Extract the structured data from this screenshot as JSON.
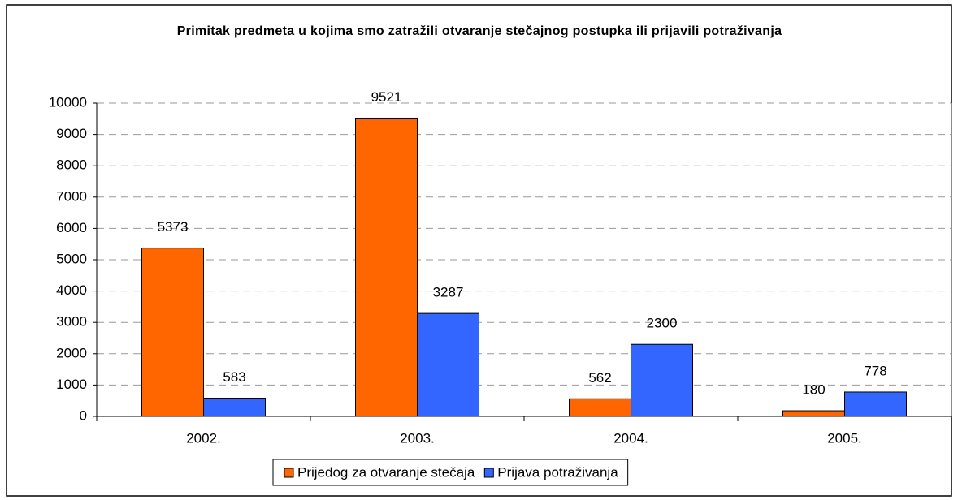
{
  "chart_data": {
    "type": "bar",
    "title": "Primitak predmeta u kojima smo zatražili otvaranje stečajnog postupka ili prijavili potraživanja",
    "categories": [
      "2002.",
      "2003.",
      "2004.",
      "2005."
    ],
    "series": [
      {
        "name": "Prijedog za otvaranje stečaja",
        "color": "#ff6600",
        "values": [
          5373,
          9521,
          562,
          180
        ]
      },
      {
        "name": "Prijava potraživanja",
        "color": "#3366ff",
        "values": [
          583,
          3287,
          2300,
          778
        ]
      }
    ],
    "ylim": [
      0,
      10000
    ],
    "yticks": [
      0,
      1000,
      2000,
      3000,
      4000,
      5000,
      6000,
      7000,
      8000,
      9000,
      10000
    ],
    "grid": true,
    "legend": "bottom"
  }
}
